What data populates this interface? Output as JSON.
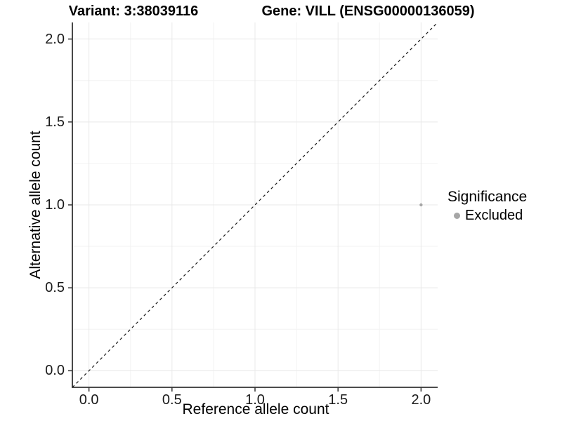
{
  "figure": {
    "title_left": "Variant: 3:38039116",
    "title_right": "Gene: VILL (ENSG00000136059)",
    "x_axis_label": "Reference allele count",
    "y_axis_label": "Alternative allele count",
    "legend": {
      "title": "Significance",
      "items": [
        {
          "label": "Excluded",
          "color": "#a6a6a6"
        }
      ]
    }
  },
  "chart_data": {
    "type": "scatter",
    "title": "Variant: 3:38039116 — Gene: VILL (ENSG00000136059)",
    "xlabel": "Reference allele count",
    "ylabel": "Alternative allele count",
    "xlim": [
      -0.1,
      2.1
    ],
    "ylim": [
      -0.1,
      2.1
    ],
    "x_ticks": [
      0.0,
      0.5,
      1.0,
      1.5,
      2.0
    ],
    "y_ticks": [
      0.0,
      0.5,
      1.0,
      1.5,
      2.0
    ],
    "x_tick_labels": [
      "0.0",
      "0.5",
      "1.0",
      "1.5",
      "2.0"
    ],
    "y_tick_labels": [
      "0.0",
      "0.5",
      "1.0",
      "1.5",
      "2.0"
    ],
    "minor_gridlines": [
      0.25,
      0.75,
      1.25,
      1.75
    ],
    "grid": true,
    "legend_position": "right",
    "series": [
      {
        "name": "Excluded",
        "color": "#a6a6a6",
        "point_radius": 2.2,
        "points": [
          {
            "x": 2.0,
            "y": 1.0
          }
        ]
      }
    ],
    "reference_line": {
      "type": "identity",
      "style": "dashed",
      "color": "#1a1a1a"
    }
  },
  "colors": {
    "background": "#ffffff",
    "axis_line": "#333333",
    "tick_mark": "#333333",
    "grid_major": "#e8e8e8",
    "grid_minor": "#f3f3f3",
    "point": "#a6a6a6",
    "text": "#000000",
    "tick_text": "#1a1a1a"
  }
}
